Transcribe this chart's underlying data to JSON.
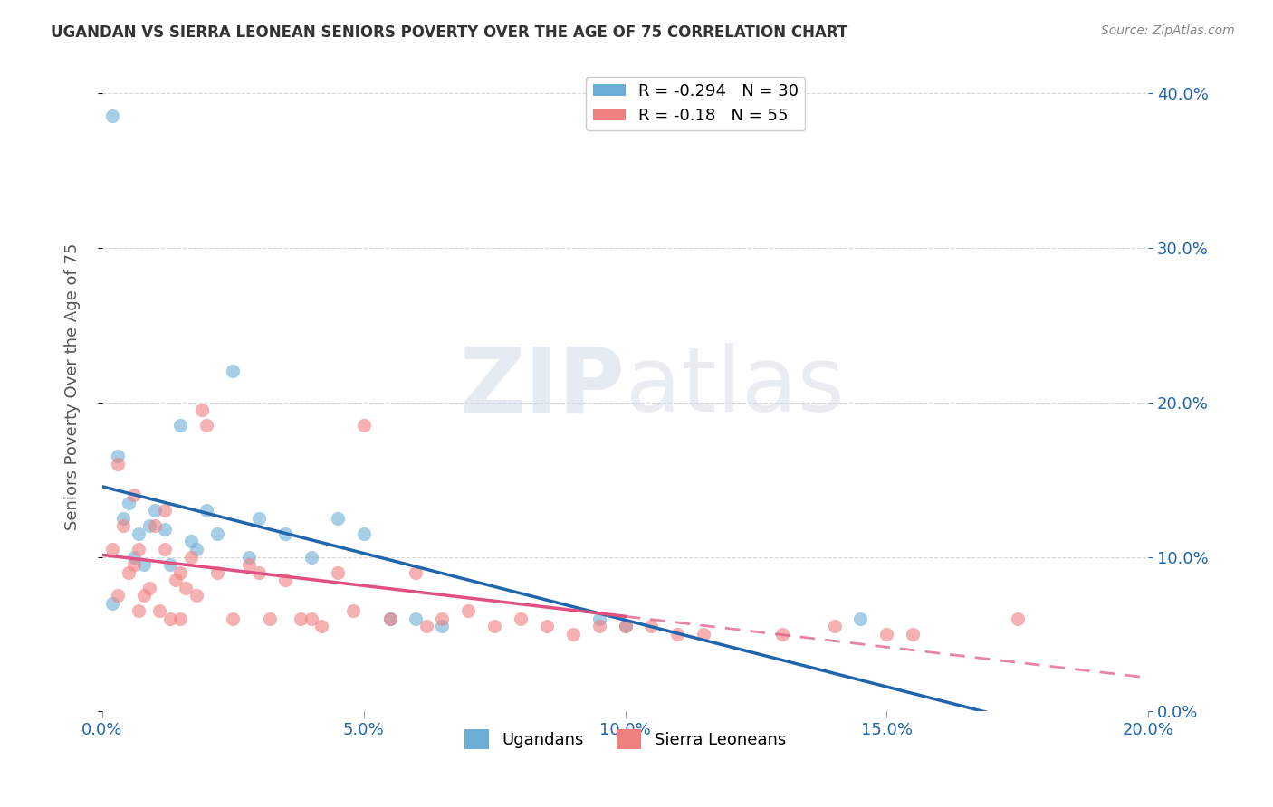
{
  "title": "UGANDAN VS SIERRA LEONEAN SENIORS POVERTY OVER THE AGE OF 75 CORRELATION CHART",
  "source": "Source: ZipAtlas.com",
  "ylabel": "Seniors Poverty Over the Age of 75",
  "xlabel": "",
  "xlim": [
    0.0,
    0.2
  ],
  "ylim": [
    0.0,
    0.42
  ],
  "xticks": [
    0.0,
    0.05,
    0.1,
    0.15,
    0.2
  ],
  "yticks": [
    0.0,
    0.1,
    0.2,
    0.3,
    0.4
  ],
  "ugandan_x": [
    0.002,
    0.003,
    0.004,
    0.005,
    0.006,
    0.007,
    0.008,
    0.009,
    0.01,
    0.012,
    0.013,
    0.015,
    0.017,
    0.018,
    0.02,
    0.022,
    0.025,
    0.028,
    0.03,
    0.035,
    0.04,
    0.045,
    0.05,
    0.055,
    0.06,
    0.065,
    0.095,
    0.1,
    0.145,
    0.002
  ],
  "ugandan_y": [
    0.385,
    0.165,
    0.125,
    0.135,
    0.1,
    0.115,
    0.095,
    0.12,
    0.13,
    0.118,
    0.095,
    0.185,
    0.11,
    0.105,
    0.13,
    0.115,
    0.22,
    0.1,
    0.125,
    0.115,
    0.1,
    0.125,
    0.115,
    0.06,
    0.06,
    0.055,
    0.06,
    0.055,
    0.06,
    0.07
  ],
  "sl_x": [
    0.002,
    0.003,
    0.004,
    0.005,
    0.006,
    0.007,
    0.007,
    0.008,
    0.009,
    0.01,
    0.011,
    0.012,
    0.013,
    0.014,
    0.015,
    0.016,
    0.017,
    0.018,
    0.019,
    0.02,
    0.022,
    0.025,
    0.028,
    0.03,
    0.032,
    0.035,
    0.038,
    0.04,
    0.042,
    0.045,
    0.048,
    0.05,
    0.055,
    0.06,
    0.062,
    0.065,
    0.07,
    0.075,
    0.08,
    0.085,
    0.09,
    0.095,
    0.1,
    0.105,
    0.11,
    0.115,
    0.13,
    0.14,
    0.15,
    0.155,
    0.003,
    0.006,
    0.012,
    0.015,
    0.175
  ],
  "sl_y": [
    0.105,
    0.075,
    0.12,
    0.09,
    0.095,
    0.105,
    0.065,
    0.075,
    0.08,
    0.12,
    0.065,
    0.105,
    0.06,
    0.085,
    0.09,
    0.08,
    0.1,
    0.075,
    0.195,
    0.185,
    0.09,
    0.06,
    0.095,
    0.09,
    0.06,
    0.085,
    0.06,
    0.06,
    0.055,
    0.09,
    0.065,
    0.185,
    0.06,
    0.09,
    0.055,
    0.06,
    0.065,
    0.055,
    0.06,
    0.055,
    0.05,
    0.055,
    0.055,
    0.055,
    0.05,
    0.05,
    0.05,
    0.055,
    0.05,
    0.05,
    0.16,
    0.14,
    0.13,
    0.06,
    0.06
  ],
  "ugandan_R": -0.294,
  "ugandan_N": 30,
  "sl_R": -0.18,
  "sl_N": 55,
  "ugandan_color": "#6baed6",
  "sl_color": "#f08080",
  "ugandan_line_color": "#2166ac",
  "sl_line_color": "#e05080",
  "background_color": "#ffffff",
  "grid_color": "#cccccc",
  "title_color": "#333333",
  "axis_label_color": "#555555"
}
